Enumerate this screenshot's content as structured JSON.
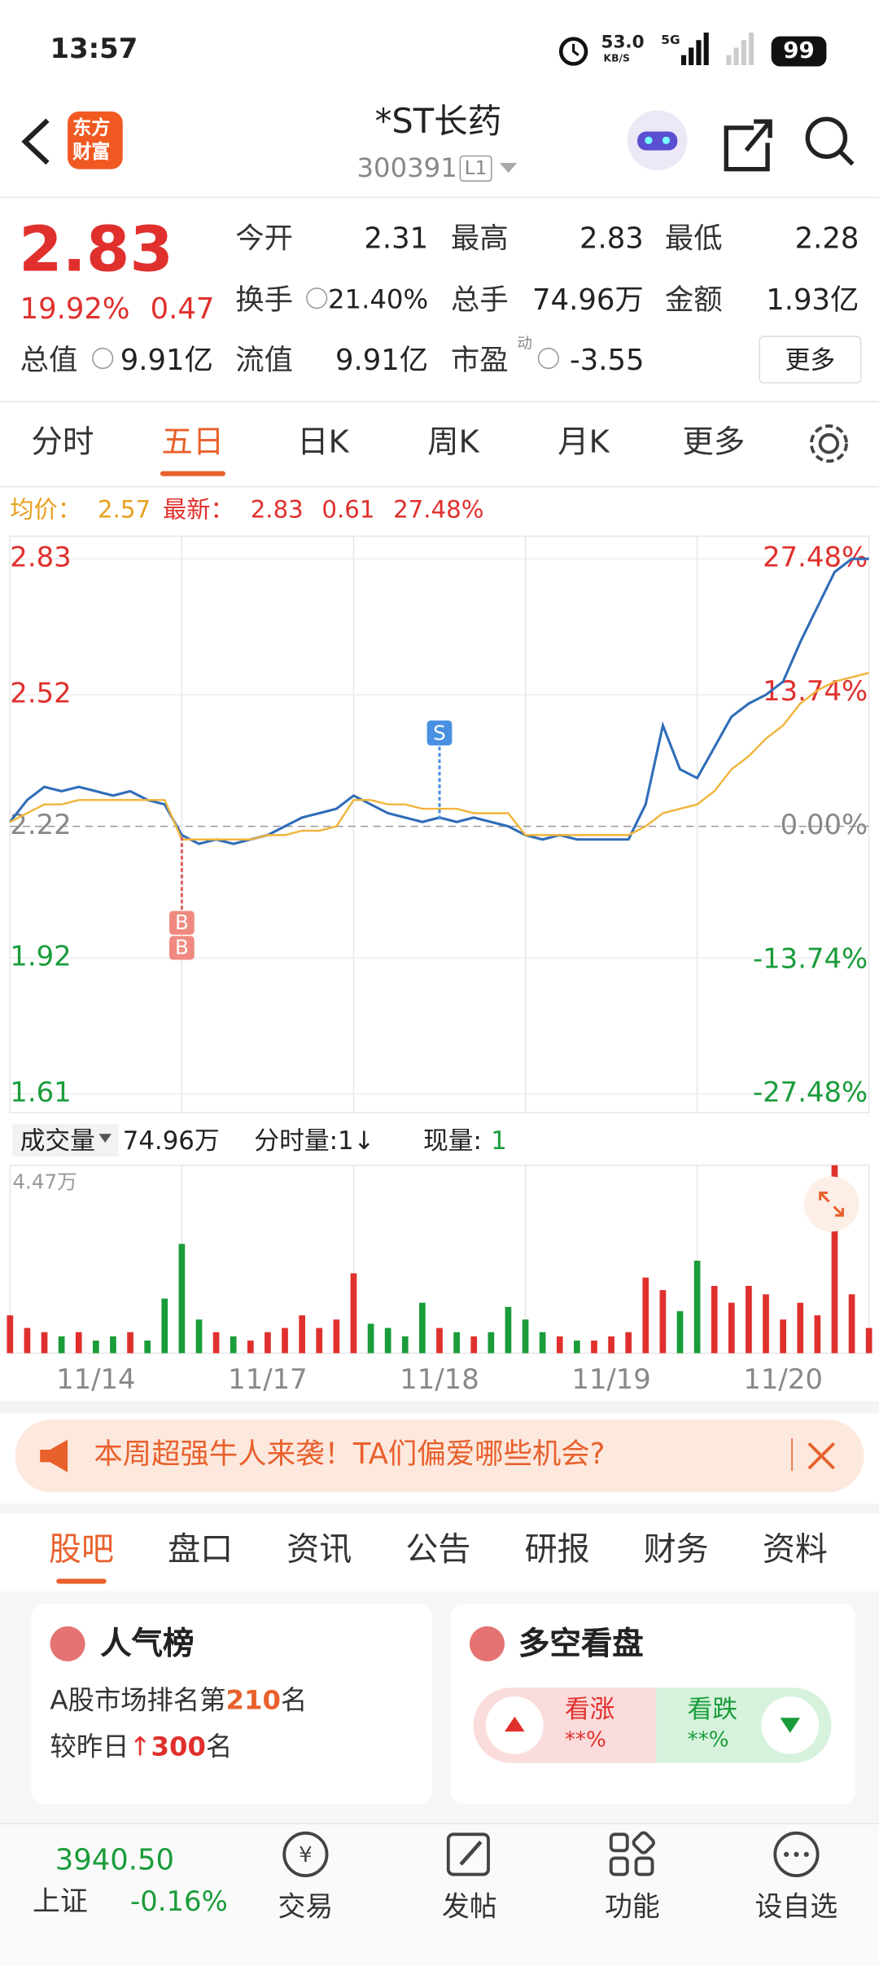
{
  "status_bar": {
    "time": "13:57",
    "net_speed": "53.0",
    "net_unit": "KB/S",
    "network": "5G",
    "battery": "99"
  },
  "header": {
    "logo": [
      "东方",
      "财富"
    ],
    "title": "*ST长药",
    "code": "300391",
    "level": "L1"
  },
  "quote": {
    "price": "2.83",
    "change_pct": "19.92%",
    "change": "0.47",
    "open": {
      "label": "今开",
      "value": "2.31"
    },
    "high": {
      "label": "最高",
      "value": "2.83"
    },
    "low": {
      "label": "最低",
      "value": "2.28"
    },
    "turnover": {
      "label": "换手",
      "value": "21.40%"
    },
    "volume": {
      "label": "总手",
      "value": "74.96万"
    },
    "amount": {
      "label": "金额",
      "value": "1.93亿"
    },
    "market_cap": {
      "label": "总值",
      "value": "9.91亿"
    },
    "float_cap": {
      "label": "流值",
      "value": "9.91亿"
    },
    "pe": {
      "label": "市盈",
      "sup": "动",
      "value": "-3.55"
    },
    "more": "更多"
  },
  "period_tabs": {
    "items": [
      "分时",
      "五日",
      "日K",
      "周K",
      "月K",
      "更多"
    ],
    "active": 1
  },
  "legend": {
    "avg_label": "均价：",
    "avg": "2.57",
    "last_label": "最新：",
    "last": "2.83",
    "change": "0.61",
    "change_pct": "27.48%"
  },
  "price_chart": {
    "type": "line",
    "x": [
      0,
      1,
      2,
      3,
      4,
      5,
      6,
      7,
      8,
      9,
      10,
      11,
      12,
      13,
      14,
      15,
      16,
      17,
      18,
      19,
      20,
      21,
      22,
      23,
      24,
      25,
      26,
      27,
      28,
      29,
      30,
      31,
      32,
      33,
      34,
      35,
      36,
      37,
      38,
      39,
      40,
      41,
      42,
      43,
      44,
      45,
      46,
      47,
      48,
      49,
      50
    ],
    "xlim": [
      0,
      50
    ],
    "series": [
      {
        "color": "#2f6db8",
        "values": [
          2.23,
          2.28,
          2.31,
          2.3,
          2.31,
          2.3,
          2.29,
          2.3,
          2.28,
          2.27,
          2.2,
          2.18,
          2.19,
          2.18,
          2.19,
          2.2,
          2.22,
          2.24,
          2.25,
          2.26,
          2.29,
          2.27,
          2.25,
          2.24,
          2.23,
          2.24,
          2.23,
          2.24,
          2.23,
          2.22,
          2.2,
          2.19,
          2.2,
          2.19,
          2.19,
          2.19,
          2.19,
          2.27,
          2.45,
          2.35,
          2.33,
          2.4,
          2.47,
          2.5,
          2.52,
          2.55,
          2.64,
          2.72,
          2.8,
          2.83,
          2.83
        ]
      },
      {
        "color": "#f0b43c",
        "values": [
          2.23,
          2.25,
          2.27,
          2.27,
          2.28,
          2.28,
          2.28,
          2.28,
          2.28,
          2.28,
          2.19,
          2.19,
          2.19,
          2.19,
          2.19,
          2.2,
          2.2,
          2.21,
          2.21,
          2.22,
          2.28,
          2.28,
          2.27,
          2.27,
          2.26,
          2.26,
          2.26,
          2.25,
          2.25,
          2.25,
          2.2,
          2.2,
          2.2,
          2.2,
          2.2,
          2.2,
          2.2,
          2.22,
          2.25,
          2.26,
          2.27,
          2.3,
          2.35,
          2.38,
          2.42,
          2.45,
          2.5,
          2.53,
          2.55,
          2.56,
          2.57
        ]
      }
    ],
    "ylim": [
      1.61,
      2.83
    ],
    "yticks": [
      2.83,
      2.52,
      2.22,
      1.92,
      1.61
    ],
    "y2lim": [
      -27.48,
      27.48
    ],
    "y2ticks": [
      {
        "value": 27.48,
        "label": "27.48%"
      },
      {
        "value": 13.74,
        "label": "13.74%"
      },
      {
        "value": 0,
        "label": "0.00%"
      },
      {
        "value": -13.74,
        "label": "-13.74%"
      },
      {
        "value": -27.48,
        "label": "-27.48%"
      }
    ],
    "buy_marks": {
      "x": 10,
      "labels": [
        "B",
        "B"
      ]
    },
    "sell_marks": {
      "x": 25,
      "labels": [
        "S"
      ]
    }
  },
  "volume_bar": {
    "label": "成交量",
    "total": "74.96万",
    "tick_label": "分时量:1↓",
    "current_label": "现量:",
    "current": "1"
  },
  "volume_chart": {
    "type": "bar",
    "x": [
      0,
      1,
      2,
      3,
      4,
      5,
      6,
      7,
      8,
      9,
      10,
      11,
      12,
      13,
      14,
      15,
      16,
      17,
      18,
      19,
      20,
      21,
      22,
      23,
      24,
      25,
      26,
      27,
      28,
      29,
      30,
      31,
      32,
      33,
      34,
      35,
      36,
      37,
      38,
      39,
      40,
      41,
      42,
      43,
      44,
      45,
      46,
      47,
      48,
      49,
      50
    ],
    "xlim": [
      0,
      50
    ],
    "values": [
      0.9,
      0.6,
      0.5,
      0.4,
      0.5,
      0.3,
      0.4,
      0.5,
      0.3,
      1.3,
      2.6,
      0.8,
      0.5,
      0.4,
      0.3,
      0.5,
      0.6,
      0.9,
      0.6,
      0.8,
      1.9,
      0.7,
      0.6,
      0.4,
      1.2,
      0.6,
      0.5,
      0.4,
      0.5,
      1.1,
      0.8,
      0.5,
      0.4,
      0.3,
      0.3,
      0.4,
      0.5,
      1.8,
      1.5,
      1.0,
      2.2,
      1.6,
      1.2,
      1.6,
      1.4,
      0.8,
      1.2,
      0.9,
      4.47,
      1.4,
      0.6
    ],
    "ylim": [
      0,
      4.47
    ],
    "yticks": [
      {
        "value": 4.47,
        "label": "4.47万"
      }
    ],
    "xticks": [
      {
        "value": 5,
        "label": "11/14"
      },
      {
        "value": 15,
        "label": "11/17"
      },
      {
        "value": 25,
        "label": "11/18"
      },
      {
        "value": 35,
        "label": "11/19"
      },
      {
        "value": 45,
        "label": "11/20"
      }
    ],
    "colors": {
      "up": "#e0302d",
      "down": "#1a9c3a"
    }
  },
  "banner": {
    "text": "本周超强牛人来袭！TA们偏爱哪些机会?"
  },
  "section_tabs": {
    "items": [
      "股吧",
      "盘口",
      "资讯",
      "公告",
      "研报",
      "财务",
      "资料"
    ],
    "active": 0
  },
  "popularity": {
    "title": "人气榜",
    "rank_prefix": "A股市场排名第",
    "rank": "210",
    "rank_suffix": "名",
    "change_prefix": "较昨日",
    "change": "300",
    "change_suffix": "名"
  },
  "sentiment": {
    "title": "多空看盘",
    "bull": "看涨",
    "bull_value": "**%",
    "bear": "看跌",
    "bear_value": "**%"
  },
  "bottom_nav": {
    "index_value": "3940.50",
    "index_name": "上证",
    "index_change": "-0.16%",
    "items": [
      "交易",
      "发帖",
      "功能",
      "设自选"
    ]
  }
}
